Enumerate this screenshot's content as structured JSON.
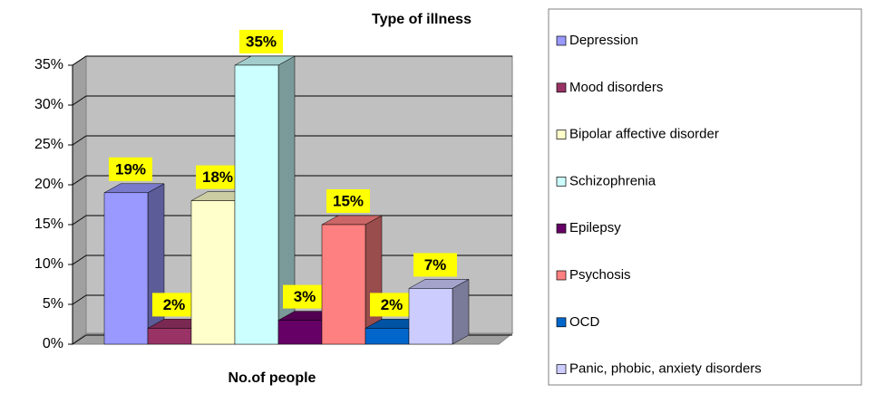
{
  "chart_data": {
    "type": "bar3d",
    "title": "Type of illness",
    "x_label": "No.of people",
    "ylim": [
      0,
      35
    ],
    "yticks": [
      {
        "value": 0,
        "label": "0%"
      },
      {
        "value": 5,
        "label": "5%"
      },
      {
        "value": 10,
        "label": "10%"
      },
      {
        "value": 15,
        "label": "15%"
      },
      {
        "value": 20,
        "label": "20%"
      },
      {
        "value": 25,
        "label": "25%"
      },
      {
        "value": 30,
        "label": "30%"
      },
      {
        "value": 35,
        "label": "35%"
      }
    ],
    "grid": true,
    "legend": "right",
    "series": [
      {
        "name": "Depression",
        "color": "#9999ff",
        "values": [
          19
        ],
        "value_labels": [
          "19%"
        ]
      },
      {
        "name": "Mood disorders",
        "color": "#993366",
        "values": [
          2
        ],
        "value_labels": [
          "2%"
        ]
      },
      {
        "name": "Bipolar affective disorder",
        "color": "#ffffcc",
        "values": [
          18
        ],
        "value_labels": [
          "18%"
        ]
      },
      {
        "name": "Schizophrenia",
        "color": "#ccffff",
        "values": [
          35
        ],
        "value_labels": [
          "35%"
        ]
      },
      {
        "name": "Epilepsy",
        "color": "#660066",
        "values": [
          3
        ],
        "value_labels": [
          "3%"
        ]
      },
      {
        "name": "Psychosis",
        "color": "#ff8080",
        "values": [
          15
        ],
        "value_labels": [
          "15%"
        ]
      },
      {
        "name": "OCD",
        "color": "#0066cc",
        "values": [
          2
        ],
        "value_labels": [
          "2%"
        ]
      },
      {
        "name": "Panic, phobic, anxiety disorders",
        "color": "#ccccff",
        "values": [
          7
        ],
        "value_labels": [
          "7%"
        ]
      }
    ]
  }
}
